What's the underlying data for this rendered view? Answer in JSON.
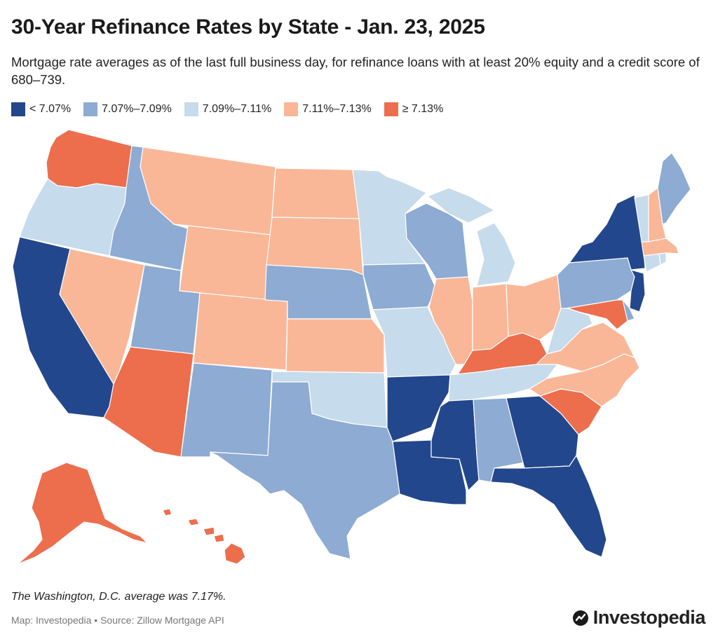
{
  "title": "30-Year Refinance Rates by State - Jan. 23, 2025",
  "subtitle": "Mortgage rate averages as of the last full business day, for refinance loans with at least 20% equity and a credit score of 680–739.",
  "legend": {
    "items": [
      {
        "label": "< 7.07%",
        "color": "#23478c"
      },
      {
        "label": "7.07%–7.09%",
        "color": "#8dabd3"
      },
      {
        "label": "7.09%–7.11%",
        "color": "#c6dbeb"
      },
      {
        "label": "7.11%–7.13%",
        "color": "#f9b797"
      },
      {
        "label": "≥ 7.13%",
        "color": "#ec6e4d"
      }
    ]
  },
  "states": [
    {
      "name": "Washington",
      "bin": 4
    },
    {
      "name": "Oregon",
      "bin": 2
    },
    {
      "name": "California",
      "bin": 0
    },
    {
      "name": "Idaho",
      "bin": 1
    },
    {
      "name": "Nevada",
      "bin": 3
    },
    {
      "name": "Montana",
      "bin": 3
    },
    {
      "name": "Wyoming",
      "bin": 3
    },
    {
      "name": "Utah",
      "bin": 1
    },
    {
      "name": "Arizona",
      "bin": 4
    },
    {
      "name": "Colorado",
      "bin": 3
    },
    {
      "name": "New Mexico",
      "bin": 1
    },
    {
      "name": "North Dakota",
      "bin": 3
    },
    {
      "name": "South Dakota",
      "bin": 3
    },
    {
      "name": "Nebraska",
      "bin": 1
    },
    {
      "name": "Kansas",
      "bin": 3
    },
    {
      "name": "Oklahoma",
      "bin": 2
    },
    {
      "name": "Texas",
      "bin": 1
    },
    {
      "name": "Minnesota",
      "bin": 2
    },
    {
      "name": "Iowa",
      "bin": 1
    },
    {
      "name": "Missouri",
      "bin": 2
    },
    {
      "name": "Arkansas",
      "bin": 0
    },
    {
      "name": "Louisiana",
      "bin": 0
    },
    {
      "name": "Wisconsin",
      "bin": 1
    },
    {
      "name": "Illinois",
      "bin": 3
    },
    {
      "name": "Michigan",
      "bin": 2
    },
    {
      "name": "Indiana",
      "bin": 3
    },
    {
      "name": "Ohio",
      "bin": 3
    },
    {
      "name": "Kentucky",
      "bin": 4
    },
    {
      "name": "Tennessee",
      "bin": 2
    },
    {
      "name": "Mississippi",
      "bin": 0
    },
    {
      "name": "Alabama",
      "bin": 1
    },
    {
      "name": "Georgia",
      "bin": 0
    },
    {
      "name": "Florida",
      "bin": 0
    },
    {
      "name": "South Carolina",
      "bin": 4
    },
    {
      "name": "North Carolina",
      "bin": 3
    },
    {
      "name": "Virginia",
      "bin": 3
    },
    {
      "name": "West Virginia",
      "bin": 2
    },
    {
      "name": "Pennsylvania",
      "bin": 1
    },
    {
      "name": "New York",
      "bin": 0
    },
    {
      "name": "New Jersey",
      "bin": 0
    },
    {
      "name": "Delaware",
      "bin": 1
    },
    {
      "name": "Maryland",
      "bin": 4
    },
    {
      "name": "Connecticut",
      "bin": 2
    },
    {
      "name": "Rhode Island",
      "bin": 2
    },
    {
      "name": "Massachusetts",
      "bin": 3
    },
    {
      "name": "Vermont",
      "bin": 2
    },
    {
      "name": "New Hampshire",
      "bin": 3
    },
    {
      "name": "Maine",
      "bin": 1
    },
    {
      "name": "Alaska",
      "bin": 4
    },
    {
      "name": "Hawaii",
      "bin": 4
    }
  ],
  "note": "The Washington, D.C. average was 7.17%.",
  "source": "Map: Investopedia • Source: Zillow Mortgage API",
  "brand": "Investopedia"
}
